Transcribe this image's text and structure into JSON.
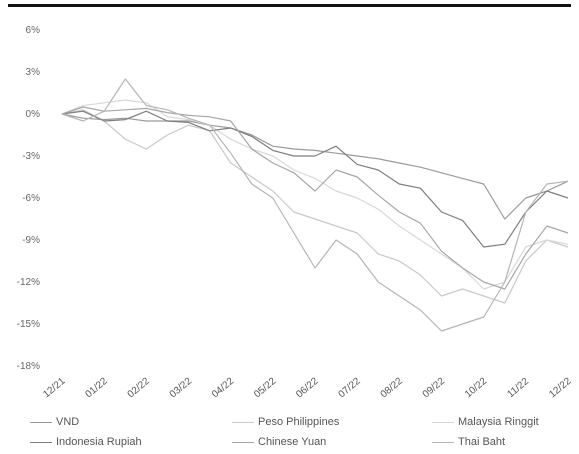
{
  "chart_data": {
    "type": "line",
    "title": "",
    "xlabel": "",
    "ylabel": "",
    "ylim": [
      -18,
      6
    ],
    "y_ticks": [
      "6%",
      "3%",
      "0%",
      "-3%",
      "-6%",
      "-9%",
      "-12%",
      "-15%",
      "-18%"
    ],
    "y_tick_values": [
      6,
      3,
      0,
      -3,
      -6,
      -9,
      -12,
      -15,
      -18
    ],
    "x_ticks": [
      "12/21",
      "01/22",
      "02/22",
      "03/22",
      "04/22",
      "05/22",
      "06/22",
      "07/22",
      "08/22",
      "09/22",
      "10/22",
      "11/22",
      "12/22"
    ],
    "grid": false,
    "legend_position": "bottom",
    "series": [
      {
        "name": "VND",
        "color": "#9a9a9a",
        "x": [
          0,
          0.5,
          1,
          1.5,
          2,
          2.5,
          3,
          3.5,
          4,
          4.5,
          5,
          5.5,
          6,
          6.5,
          7,
          7.5,
          8,
          8.5,
          9,
          9.5,
          10,
          10.5,
          11,
          11.5,
          12
        ],
        "values": [
          0,
          -0.3,
          -0.4,
          -0.3,
          -0.5,
          -0.5,
          -0.5,
          -0.8,
          -1.0,
          -1.5,
          -2.3,
          -2.5,
          -2.6,
          -2.8,
          -3.0,
          -3.2,
          -3.5,
          -3.8,
          -4.2,
          -4.6,
          -5.0,
          -7.5,
          -6.0,
          -5.5,
          -4.8
        ]
      },
      {
        "name": "Peso Philippines",
        "color": "#c9c9c9",
        "x": [
          0,
          0.5,
          1,
          1.5,
          2,
          2.5,
          3,
          3.5,
          4,
          4.5,
          5,
          5.5,
          6,
          6.5,
          7,
          7.5,
          8,
          8.5,
          9,
          9.5,
          10,
          10.5,
          11,
          11.5,
          12
        ],
        "values": [
          0,
          0.3,
          -0.5,
          -1.8,
          -2.5,
          -1.5,
          -0.8,
          -1.2,
          -3.5,
          -4.5,
          -5.5,
          -7.0,
          -7.5,
          -8.0,
          -8.5,
          -10.0,
          -10.5,
          -11.5,
          -13.0,
          -12.5,
          -13.0,
          -13.5,
          -10.5,
          -9.0,
          -9.5
        ]
      },
      {
        "name": "Malaysia Ringgit",
        "color": "#d8d8d8",
        "x": [
          0,
          0.5,
          1,
          1.5,
          2,
          2.5,
          3,
          3.5,
          4,
          4.5,
          5,
          5.5,
          6,
          6.5,
          7,
          7.5,
          8,
          8.5,
          9,
          9.5,
          10,
          10.5,
          11,
          11.5,
          12
        ],
        "values": [
          0,
          0.6,
          0.8,
          1.0,
          0.8,
          -0.2,
          -0.4,
          -0.8,
          -1.8,
          -2.5,
          -3.0,
          -4.0,
          -4.6,
          -5.5,
          -6.0,
          -6.8,
          -8.0,
          -9.0,
          -10.0,
          -11.0,
          -12.5,
          -12.0,
          -9.5,
          -9.0,
          -9.3
        ]
      },
      {
        "name": "Indonesia Rupiah",
        "color": "#7e7e7e",
        "x": [
          0,
          0.5,
          1,
          1.5,
          2,
          2.5,
          3,
          3.5,
          4,
          4.5,
          5,
          5.5,
          6,
          6.5,
          7,
          7.5,
          8,
          8.5,
          9,
          9.5,
          10,
          10.5,
          11,
          11.5,
          12
        ],
        "values": [
          0,
          0.2,
          -0.5,
          -0.4,
          0.2,
          -0.5,
          -0.6,
          -1.2,
          -1.0,
          -1.6,
          -2.6,
          -3.0,
          -3.0,
          -2.3,
          -3.6,
          -4.0,
          -5.0,
          -5.3,
          -7.0,
          -7.6,
          -9.5,
          -9.3,
          -7.0,
          -5.5,
          -6.0
        ]
      },
      {
        "name": "Chinese Yuan",
        "color": "#a7a7a7",
        "x": [
          0,
          0.5,
          1,
          1.5,
          2,
          2.5,
          3,
          3.5,
          4,
          4.5,
          5,
          5.5,
          6,
          6.5,
          7,
          7.5,
          8,
          8.5,
          9,
          9.5,
          10,
          10.5,
          11,
          11.5,
          12
        ],
        "values": [
          0,
          0.5,
          0.2,
          0.3,
          0.4,
          0.1,
          -0.1,
          -0.2,
          -0.5,
          -2.5,
          -3.5,
          -4.2,
          -5.5,
          -4.0,
          -4.5,
          -5.8,
          -7.0,
          -7.8,
          -9.8,
          -11.0,
          -12.0,
          -12.5,
          -10.0,
          -8.0,
          -8.5
        ]
      },
      {
        "name": "Thai Baht",
        "color": "#b5b5b5",
        "x": [
          0,
          0.5,
          1,
          1.5,
          2,
          2.5,
          3,
          3.5,
          4,
          4.5,
          5,
          5.5,
          6,
          6.5,
          7,
          7.5,
          8,
          8.5,
          9,
          9.5,
          10,
          10.5,
          11,
          11.5,
          12
        ],
        "values": [
          0,
          -0.5,
          0.2,
          2.5,
          0.6,
          0.3,
          -0.3,
          -0.8,
          -2.8,
          -5.0,
          -6.0,
          -8.5,
          -11.0,
          -9.0,
          -10.0,
          -12.0,
          -13.0,
          -14.0,
          -15.5,
          -15.0,
          -14.5,
          -12.0,
          -7.0,
          -5.0,
          -4.8
        ]
      }
    ]
  },
  "legend": {
    "items": [
      {
        "label": "VND"
      },
      {
        "label": "Peso Philippines"
      },
      {
        "label": "Malaysia Ringgit"
      },
      {
        "label": "Indonesia Rupiah"
      },
      {
        "label": "Chinese Yuan"
      },
      {
        "label": "Thai Baht"
      }
    ]
  }
}
